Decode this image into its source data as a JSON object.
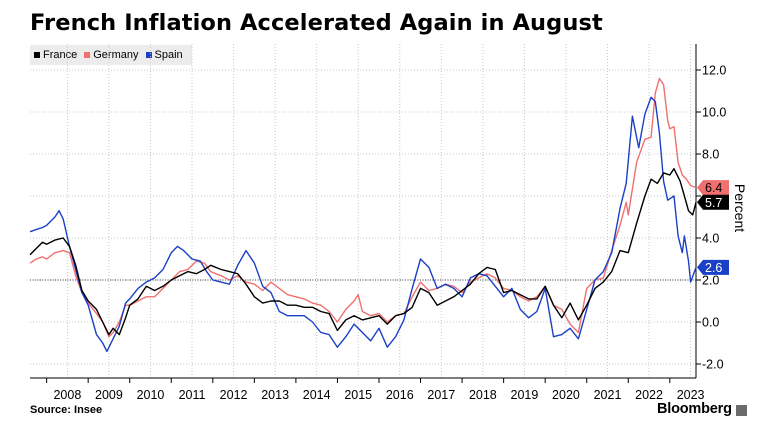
{
  "title": "French Inflation Accelerated Again in August",
  "source": "Source: Insee",
  "brand": "Bloomberg",
  "colors": {
    "France": "#000000",
    "Germany": "#f07070",
    "Spain": "#1a40c8"
  },
  "legend": [
    {
      "name": "France",
      "color": "#000000"
    },
    {
      "name": "Germany",
      "color": "#f07070"
    },
    {
      "name": "Spain",
      "color": "#1a40c8"
    }
  ],
  "chart_data": {
    "type": "line",
    "title": "French Inflation Accelerated Again in August",
    "ylabel": "Percent",
    "y_axis_side": "right",
    "ylim": [
      -2.0,
      13.0
    ],
    "yticks": [
      -2.0,
      0.0,
      2.0,
      4.0,
      6.0,
      8.0,
      10.0,
      12.0
    ],
    "xlim": [
      2007.6,
      2023.63
    ],
    "xticks": [
      2008,
      2009,
      2010,
      2011,
      2012,
      2013,
      2014,
      2015,
      2016,
      2017,
      2018,
      2019,
      2020,
      2021,
      2022,
      2023
    ],
    "grid": true,
    "reference_line": 2.0,
    "legend_position": "top-left",
    "series": [
      {
        "name": "France",
        "color": "#000000",
        "last_value": "5.7",
        "points": [
          [
            2007.6,
            3.2
          ],
          [
            2007.75,
            3.5
          ],
          [
            2007.9,
            3.8
          ],
          [
            2008.0,
            3.7
          ],
          [
            2008.2,
            3.9
          ],
          [
            2008.4,
            4.0
          ],
          [
            2008.55,
            3.6
          ],
          [
            2008.7,
            2.7
          ],
          [
            2008.85,
            1.5
          ],
          [
            2009.0,
            1.0
          ],
          [
            2009.2,
            0.6
          ],
          [
            2009.35,
            0.0
          ],
          [
            2009.5,
            -0.6
          ],
          [
            2009.6,
            -0.3
          ],
          [
            2009.75,
            -0.6
          ],
          [
            2009.9,
            0.2
          ],
          [
            2010.0,
            0.8
          ],
          [
            2010.2,
            1.1
          ],
          [
            2010.4,
            1.7
          ],
          [
            2010.6,
            1.5
          ],
          [
            2010.8,
            1.7
          ],
          [
            2011.0,
            2.0
          ],
          [
            2011.2,
            2.2
          ],
          [
            2011.4,
            2.4
          ],
          [
            2011.6,
            2.3
          ],
          [
            2011.8,
            2.5
          ],
          [
            2011.95,
            2.7
          ],
          [
            2012.2,
            2.5
          ],
          [
            2012.4,
            2.4
          ],
          [
            2012.6,
            2.3
          ],
          [
            2012.8,
            1.8
          ],
          [
            2013.0,
            1.2
          ],
          [
            2013.2,
            0.9
          ],
          [
            2013.4,
            1.0
          ],
          [
            2013.6,
            1.0
          ],
          [
            2013.8,
            0.8
          ],
          [
            2014.0,
            0.8
          ],
          [
            2014.2,
            0.7
          ],
          [
            2014.4,
            0.7
          ],
          [
            2014.6,
            0.5
          ],
          [
            2014.8,
            0.4
          ],
          [
            2015.0,
            -0.4
          ],
          [
            2015.2,
            0.1
          ],
          [
            2015.4,
            0.3
          ],
          [
            2015.6,
            0.1
          ],
          [
            2015.8,
            0.2
          ],
          [
            2016.0,
            0.3
          ],
          [
            2016.2,
            -0.1
          ],
          [
            2016.4,
            0.3
          ],
          [
            2016.6,
            0.4
          ],
          [
            2016.8,
            0.7
          ],
          [
            2017.0,
            1.6
          ],
          [
            2017.2,
            1.4
          ],
          [
            2017.4,
            0.8
          ],
          [
            2017.6,
            1.0
          ],
          [
            2017.8,
            1.2
          ],
          [
            2018.0,
            1.5
          ],
          [
            2018.2,
            1.8
          ],
          [
            2018.4,
            2.3
          ],
          [
            2018.6,
            2.6
          ],
          [
            2018.8,
            2.5
          ],
          [
            2019.0,
            1.4
          ],
          [
            2019.2,
            1.5
          ],
          [
            2019.4,
            1.3
          ],
          [
            2019.6,
            1.1
          ],
          [
            2019.8,
            1.1
          ],
          [
            2020.0,
            1.7
          ],
          [
            2020.2,
            0.8
          ],
          [
            2020.4,
            0.2
          ],
          [
            2020.6,
            0.9
          ],
          [
            2020.8,
            0.1
          ],
          [
            2021.0,
            0.8
          ],
          [
            2021.2,
            1.6
          ],
          [
            2021.4,
            1.9
          ],
          [
            2021.6,
            2.4
          ],
          [
            2021.8,
            3.4
          ],
          [
            2022.0,
            3.3
          ],
          [
            2022.2,
            4.7
          ],
          [
            2022.4,
            6.0
          ],
          [
            2022.55,
            6.8
          ],
          [
            2022.7,
            6.6
          ],
          [
            2022.85,
            7.1
          ],
          [
            2023.0,
            7.0
          ],
          [
            2023.1,
            7.3
          ],
          [
            2023.25,
            6.7
          ],
          [
            2023.35,
            6.0
          ],
          [
            2023.45,
            5.3
          ],
          [
            2023.55,
            5.1
          ],
          [
            2023.63,
            5.7
          ]
        ]
      },
      {
        "name": "Germany",
        "color": "#f07070",
        "last_value": "6.4",
        "points": [
          [
            2007.6,
            2.8
          ],
          [
            2007.75,
            3.0
          ],
          [
            2007.9,
            3.1
          ],
          [
            2008.0,
            3.0
          ],
          [
            2008.2,
            3.3
          ],
          [
            2008.4,
            3.4
          ],
          [
            2008.55,
            3.3
          ],
          [
            2008.7,
            2.2
          ],
          [
            2008.85,
            1.4
          ],
          [
            2009.0,
            0.9
          ],
          [
            2009.2,
            0.4
          ],
          [
            2009.35,
            0.0
          ],
          [
            2009.5,
            -0.7
          ],
          [
            2009.6,
            -0.5
          ],
          [
            2009.75,
            0.0
          ],
          [
            2009.9,
            0.8
          ],
          [
            2010.0,
            0.8
          ],
          [
            2010.2,
            1.0
          ],
          [
            2010.4,
            1.2
          ],
          [
            2010.6,
            1.2
          ],
          [
            2010.8,
            1.6
          ],
          [
            2011.0,
            2.0
          ],
          [
            2011.2,
            2.4
          ],
          [
            2011.4,
            2.5
          ],
          [
            2011.6,
            2.9
          ],
          [
            2011.8,
            2.8
          ],
          [
            2011.95,
            2.4
          ],
          [
            2012.2,
            2.2
          ],
          [
            2012.4,
            2.0
          ],
          [
            2012.6,
            2.2
          ],
          [
            2012.8,
            1.9
          ],
          [
            2013.0,
            1.8
          ],
          [
            2013.2,
            1.5
          ],
          [
            2013.4,
            1.9
          ],
          [
            2013.6,
            1.6
          ],
          [
            2013.8,
            1.3
          ],
          [
            2014.0,
            1.2
          ],
          [
            2014.2,
            1.1
          ],
          [
            2014.4,
            0.9
          ],
          [
            2014.6,
            0.8
          ],
          [
            2014.8,
            0.5
          ],
          [
            2015.0,
            0.0
          ],
          [
            2015.2,
            0.6
          ],
          [
            2015.4,
            1.0
          ],
          [
            2015.5,
            1.3
          ],
          [
            2015.6,
            0.5
          ],
          [
            2015.8,
            0.3
          ],
          [
            2016.0,
            0.4
          ],
          [
            2016.2,
            0.0
          ],
          [
            2016.4,
            0.3
          ],
          [
            2016.6,
            0.4
          ],
          [
            2016.8,
            1.2
          ],
          [
            2017.0,
            1.9
          ],
          [
            2017.2,
            1.5
          ],
          [
            2017.4,
            1.6
          ],
          [
            2017.6,
            1.8
          ],
          [
            2017.8,
            1.7
          ],
          [
            2018.0,
            1.4
          ],
          [
            2018.2,
            1.9
          ],
          [
            2018.4,
            2.1
          ],
          [
            2018.6,
            2.3
          ],
          [
            2018.8,
            2.1
          ],
          [
            2019.0,
            1.6
          ],
          [
            2019.2,
            1.5
          ],
          [
            2019.4,
            1.2
          ],
          [
            2019.6,
            1.0
          ],
          [
            2019.8,
            1.2
          ],
          [
            2020.0,
            1.7
          ],
          [
            2020.2,
            0.8
          ],
          [
            2020.4,
            0.6
          ],
          [
            2020.6,
            -0.1
          ],
          [
            2020.8,
            -0.5
          ],
          [
            2021.0,
            1.6
          ],
          [
            2021.2,
            2.0
          ],
          [
            2021.4,
            2.1
          ],
          [
            2021.6,
            3.4
          ],
          [
            2021.8,
            4.6
          ],
          [
            2021.95,
            5.7
          ],
          [
            2022.0,
            5.1
          ],
          [
            2022.2,
            7.6
          ],
          [
            2022.4,
            8.7
          ],
          [
            2022.55,
            8.8
          ],
          [
            2022.65,
            10.9
          ],
          [
            2022.75,
            11.6
          ],
          [
            2022.85,
            11.3
          ],
          [
            2022.95,
            9.6
          ],
          [
            2023.0,
            9.2
          ],
          [
            2023.1,
            9.3
          ],
          [
            2023.2,
            7.6
          ],
          [
            2023.3,
            7.0
          ],
          [
            2023.4,
            6.8
          ],
          [
            2023.5,
            6.5
          ],
          [
            2023.63,
            6.4
          ]
        ]
      },
      {
        "name": "Spain",
        "color": "#1a40c8",
        "last_value": "2.6",
        "points": [
          [
            2007.6,
            4.3
          ],
          [
            2007.75,
            4.4
          ],
          [
            2007.9,
            4.5
          ],
          [
            2008.0,
            4.6
          ],
          [
            2008.2,
            5.0
          ],
          [
            2008.3,
            5.3
          ],
          [
            2008.4,
            4.9
          ],
          [
            2008.55,
            3.6
          ],
          [
            2008.7,
            2.5
          ],
          [
            2008.85,
            1.4
          ],
          [
            2009.0,
            0.8
          ],
          [
            2009.2,
            -0.6
          ],
          [
            2009.35,
            -1.0
          ],
          [
            2009.45,
            -1.4
          ],
          [
            2009.6,
            -0.8
          ],
          [
            2009.75,
            -0.2
          ],
          [
            2009.9,
            0.9
          ],
          [
            2010.0,
            1.1
          ],
          [
            2010.2,
            1.6
          ],
          [
            2010.4,
            1.9
          ],
          [
            2010.6,
            2.1
          ],
          [
            2010.8,
            2.5
          ],
          [
            2011.0,
            3.3
          ],
          [
            2011.15,
            3.6
          ],
          [
            2011.3,
            3.4
          ],
          [
            2011.5,
            3.0
          ],
          [
            2011.7,
            2.9
          ],
          [
            2011.85,
            2.4
          ],
          [
            2012.0,
            2.0
          ],
          [
            2012.2,
            1.9
          ],
          [
            2012.4,
            1.8
          ],
          [
            2012.6,
            2.7
          ],
          [
            2012.8,
            3.4
          ],
          [
            2013.0,
            2.8
          ],
          [
            2013.2,
            1.7
          ],
          [
            2013.4,
            1.4
          ],
          [
            2013.6,
            0.5
          ],
          [
            2013.8,
            0.3
          ],
          [
            2014.0,
            0.3
          ],
          [
            2014.2,
            0.3
          ],
          [
            2014.4,
            0.0
          ],
          [
            2014.6,
            -0.5
          ],
          [
            2014.8,
            -0.6
          ],
          [
            2015.0,
            -1.2
          ],
          [
            2015.2,
            -0.7
          ],
          [
            2015.4,
            -0.1
          ],
          [
            2015.6,
            -0.5
          ],
          [
            2015.8,
            -0.9
          ],
          [
            2016.0,
            -0.3
          ],
          [
            2016.2,
            -1.2
          ],
          [
            2016.4,
            -0.7
          ],
          [
            2016.6,
            0.1
          ],
          [
            2016.8,
            1.6
          ],
          [
            2017.0,
            3.0
          ],
          [
            2017.2,
            2.6
          ],
          [
            2017.4,
            1.6
          ],
          [
            2017.6,
            1.8
          ],
          [
            2017.8,
            1.6
          ],
          [
            2018.0,
            1.2
          ],
          [
            2018.2,
            2.1
          ],
          [
            2018.4,
            2.3
          ],
          [
            2018.6,
            2.2
          ],
          [
            2018.8,
            1.7
          ],
          [
            2019.0,
            1.2
          ],
          [
            2019.2,
            1.6
          ],
          [
            2019.4,
            0.6
          ],
          [
            2019.6,
            0.2
          ],
          [
            2019.8,
            0.5
          ],
          [
            2020.0,
            1.6
          ],
          [
            2020.2,
            -0.7
          ],
          [
            2020.4,
            -0.6
          ],
          [
            2020.6,
            -0.3
          ],
          [
            2020.8,
            -0.8
          ],
          [
            2021.0,
            0.6
          ],
          [
            2021.2,
            2.0
          ],
          [
            2021.4,
            2.4
          ],
          [
            2021.6,
            3.3
          ],
          [
            2021.8,
            5.4
          ],
          [
            2021.95,
            6.6
          ],
          [
            2022.1,
            9.8
          ],
          [
            2022.25,
            8.3
          ],
          [
            2022.4,
            9.9
          ],
          [
            2022.55,
            10.7
          ],
          [
            2022.65,
            10.5
          ],
          [
            2022.75,
            9.0
          ],
          [
            2022.85,
            6.7
          ],
          [
            2022.95,
            5.8
          ],
          [
            2023.1,
            6.0
          ],
          [
            2023.2,
            4.1
          ],
          [
            2023.3,
            3.3
          ],
          [
            2023.35,
            4.1
          ],
          [
            2023.45,
            2.9
          ],
          [
            2023.5,
            1.9
          ],
          [
            2023.63,
            2.6
          ]
        ]
      }
    ],
    "end_labels": [
      {
        "series": "Germany",
        "text": "6.4",
        "value": 6.4,
        "bg": "#f07070",
        "fg": "#000000"
      },
      {
        "series": "France",
        "text": "5.7",
        "value": 5.7,
        "bg": "#000000",
        "fg": "#ffffff"
      },
      {
        "series": "Spain",
        "text": "2.6",
        "value": 2.6,
        "bg": "#1a40c8",
        "fg": "#ffffff"
      }
    ]
  }
}
